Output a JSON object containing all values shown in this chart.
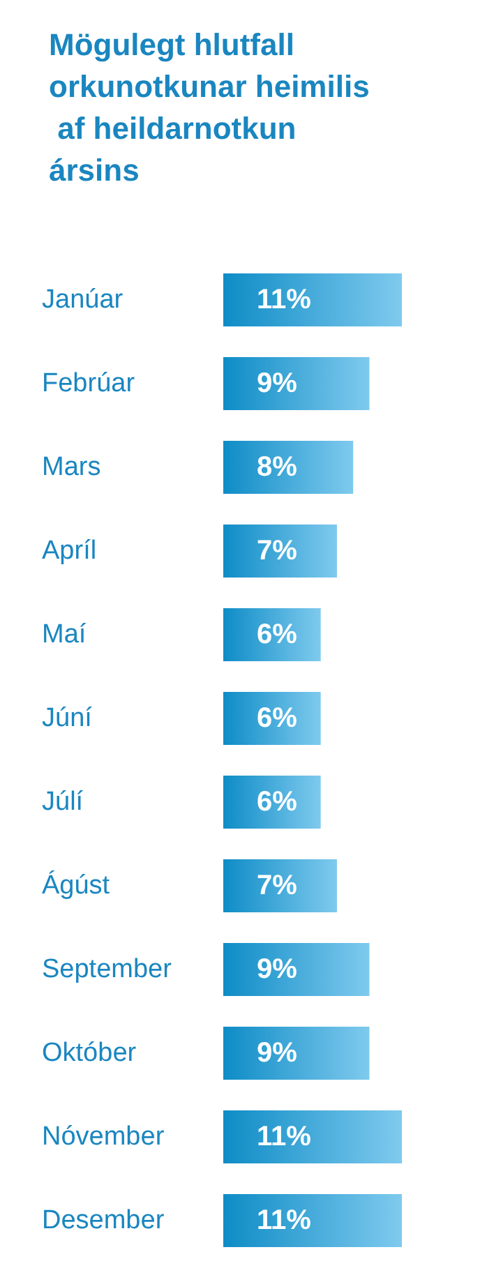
{
  "chart_data": {
    "type": "bar",
    "orientation": "horizontal",
    "title": "Mögulegt hlutfall orkunotkunar heimilis af heildarnotkun ársins",
    "categories": [
      "Janúar",
      "Febrúar",
      "Mars",
      "Apríl",
      "Maí",
      "Júní",
      "Júlí",
      "Ágúst",
      "September",
      "Október",
      "Nóvember",
      "Desember"
    ],
    "values": [
      11,
      9,
      8,
      7,
      6,
      6,
      6,
      7,
      9,
      9,
      11,
      11
    ],
    "value_labels": [
      "11%",
      "9%",
      "8%",
      "7%",
      "6%",
      "6%",
      "6%",
      "7%",
      "9%",
      "9%",
      "11%",
      "11%"
    ],
    "color": "#0e8cc6"
  }
}
